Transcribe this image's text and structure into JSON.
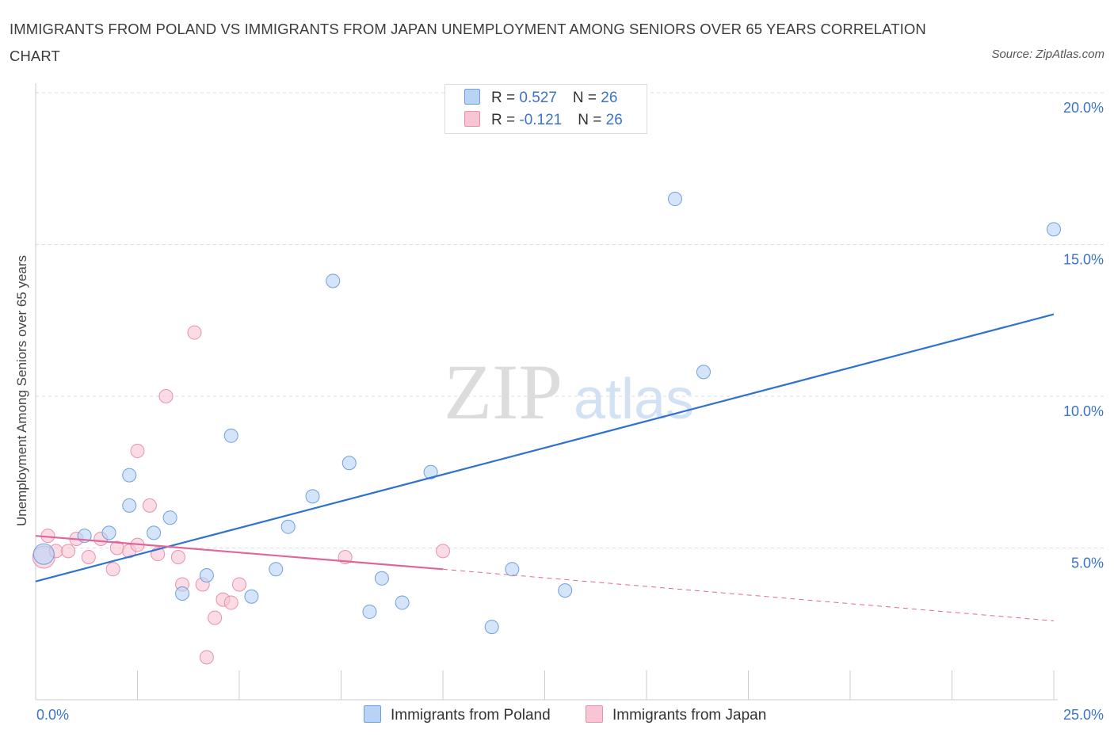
{
  "title": "IMMIGRANTS FROM POLAND VS IMMIGRANTS FROM JAPAN UNEMPLOYMENT AMONG SENIORS OVER 65 YEARS CORRELATION CHART",
  "source": "Source: ZipAtlas.com",
  "watermark": {
    "zip": "ZIP",
    "atlas": "atlas"
  },
  "legend": {
    "poland": {
      "r_label": "R = ",
      "r_value": "0.527",
      "n_label": "N = ",
      "n_value": "26"
    },
    "japan": {
      "r_label": "R = ",
      "r_value": "-0.121",
      "n_label": "N = ",
      "n_value": "26"
    }
  },
  "colors": {
    "poland_fill": "#b9d3f5",
    "poland_stroke": "#6f9fe0",
    "poland_line": "#2f73cf",
    "japan_fill": "#f8c5d4",
    "japan_stroke": "#e890ad",
    "japan_line": "#e0669a",
    "tick_label": "#3a74c9"
  },
  "chart_data": {
    "type": "scatter",
    "title": "IMMIGRANTS FROM POLAND VS IMMIGRANTS FROM JAPAN UNEMPLOYMENT AMONG SENIORS OVER 65 YEARS CORRELATION CHART",
    "xlabel": "",
    "ylabel": "Unemployment Among Seniors over 65 years",
    "xlim": [
      0,
      25
    ],
    "ylim": [
      0,
      20
    ],
    "x_tick_labels": [
      "0.0%",
      "25.0%"
    ],
    "y_ticks": [
      5,
      10,
      15,
      20
    ],
    "y_tick_labels": [
      "5.0%",
      "10.0%",
      "15.0%",
      "20.0%"
    ],
    "grid": true,
    "legend_placement": "top-center",
    "series": [
      {
        "name": "Immigrants from Poland",
        "points": [
          [
            0.2,
            4.8
          ],
          [
            1.2,
            5.4
          ],
          [
            1.8,
            5.5
          ],
          [
            2.3,
            7.4
          ],
          [
            2.3,
            6.4
          ],
          [
            2.9,
            5.5
          ],
          [
            3.3,
            6.0
          ],
          [
            3.6,
            3.5
          ],
          [
            4.2,
            4.1
          ],
          [
            4.8,
            8.7
          ],
          [
            5.3,
            3.4
          ],
          [
            5.9,
            4.3
          ],
          [
            6.2,
            5.7
          ],
          [
            6.8,
            6.7
          ],
          [
            7.3,
            13.8
          ],
          [
            7.7,
            7.8
          ],
          [
            8.2,
            2.9
          ],
          [
            8.5,
            4.0
          ],
          [
            9.0,
            3.2
          ],
          [
            9.7,
            7.5
          ],
          [
            11.2,
            2.4
          ],
          [
            11.7,
            4.3
          ],
          [
            13.0,
            3.6
          ],
          [
            15.7,
            16.5
          ],
          [
            16.4,
            10.8
          ],
          [
            25.0,
            15.5
          ]
        ],
        "trend": {
          "x": [
            0,
            25
          ],
          "y": [
            3.9,
            12.7
          ]
        }
      },
      {
        "name": "Immigrants from Japan",
        "points": [
          [
            0.2,
            4.7
          ],
          [
            0.3,
            5.4
          ],
          [
            0.5,
            4.9
          ],
          [
            0.8,
            4.9
          ],
          [
            1.0,
            5.3
          ],
          [
            1.3,
            4.7
          ],
          [
            1.6,
            5.3
          ],
          [
            1.9,
            4.3
          ],
          [
            2.0,
            5.0
          ],
          [
            2.3,
            4.9
          ],
          [
            2.5,
            5.1
          ],
          [
            2.5,
            8.2
          ],
          [
            2.8,
            6.4
          ],
          [
            3.0,
            4.8
          ],
          [
            3.2,
            10.0
          ],
          [
            3.5,
            4.7
          ],
          [
            3.6,
            3.8
          ],
          [
            3.9,
            12.1
          ],
          [
            4.1,
            3.8
          ],
          [
            4.2,
            1.4
          ],
          [
            4.4,
            2.7
          ],
          [
            4.6,
            3.3
          ],
          [
            4.8,
            3.2
          ],
          [
            5.0,
            3.8
          ],
          [
            7.6,
            4.7
          ],
          [
            10.0,
            4.9
          ]
        ],
        "trend": {
          "x": [
            0,
            10
          ],
          "y": [
            5.4,
            4.3
          ]
        },
        "trend_extension": {
          "x": [
            10,
            25
          ],
          "y": [
            4.3,
            2.6
          ]
        }
      }
    ]
  }
}
